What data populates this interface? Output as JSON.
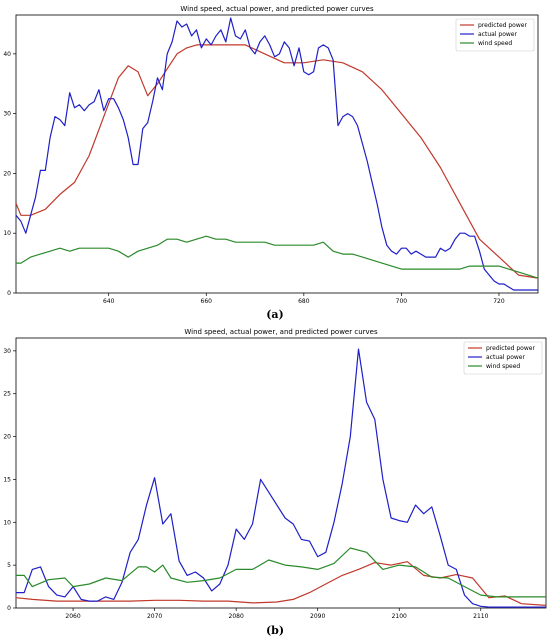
{
  "chart_data": [
    {
      "type": "line",
      "panel_label": "(a)",
      "title": "Wind speed, actual power, and predicted power curves",
      "xlabel": "",
      "ylabel": "",
      "xlim": [
        621,
        728
      ],
      "ylim": [
        0,
        46.5
      ],
      "x_ticks": [
        640,
        660,
        680,
        700,
        720
      ],
      "y_ticks": [
        0,
        10,
        20,
        30,
        40
      ],
      "grid": false,
      "legend_position": "top-right",
      "colors": {
        "predicted power": "#c0392b",
        "actual power": "#1f1fc8",
        "wind speed": "#2a8a2a"
      },
      "series": [
        {
          "name": "predicted power",
          "x": [
            621,
            622,
            624,
            627,
            630,
            633,
            636,
            639,
            642,
            644,
            646,
            648,
            650,
            652,
            654,
            656,
            658,
            660,
            664,
            668,
            672,
            676,
            680,
            684,
            688,
            692,
            696,
            700,
            704,
            708,
            712,
            716,
            720,
            724,
            728
          ],
          "y": [
            15,
            13,
            13,
            14,
            16.5,
            18.5,
            23,
            29.5,
            36,
            38,
            37,
            33,
            35,
            37.5,
            40,
            41,
            41.5,
            41.5,
            41.5,
            41.5,
            40,
            38.5,
            38.5,
            39,
            38.5,
            37,
            34,
            30,
            26,
            21,
            15,
            9,
            6,
            3,
            2.5
          ]
        },
        {
          "name": "actual power",
          "x": [
            621,
            622,
            623,
            624,
            625,
            626,
            627,
            628,
            629,
            630,
            631,
            632,
            633,
            634,
            635,
            636,
            637,
            638,
            639,
            640,
            641,
            642,
            643,
            644,
            645,
            646,
            647,
            648,
            649,
            650,
            651,
            652,
            653,
            654,
            655,
            656,
            657,
            658,
            659,
            660,
            661,
            662,
            663,
            664,
            665,
            666,
            667,
            668,
            669,
            670,
            671,
            672,
            673,
            674,
            675,
            676,
            677,
            678,
            679,
            680,
            681,
            682,
            683,
            684,
            685,
            686,
            687,
            688,
            689,
            690,
            691,
            692,
            693,
            694,
            695,
            696,
            697,
            698,
            699,
            700,
            701,
            702,
            703,
            704,
            705,
            706,
            707,
            708,
            709,
            710,
            711,
            712,
            713,
            714,
            715,
            716,
            717,
            718,
            719,
            720,
            721,
            722,
            723,
            724,
            725,
            726,
            727,
            728
          ],
          "y": [
            13,
            12,
            10,
            13,
            16,
            20.5,
            20.5,
            26,
            29.5,
            29,
            28,
            33.5,
            31,
            31.5,
            30.5,
            31.5,
            32,
            34,
            30.5,
            32.5,
            32.5,
            31,
            29,
            26,
            21.5,
            21.5,
            27.5,
            28.5,
            32,
            36,
            34,
            40,
            42,
            45.5,
            44.5,
            45,
            43,
            44,
            41,
            42.5,
            41.5,
            43,
            44,
            42,
            46,
            43,
            42.5,
            44,
            41,
            40,
            42,
            43,
            41.5,
            39.5,
            40,
            42,
            41,
            38,
            41,
            37,
            36.5,
            37,
            41,
            41.5,
            41,
            39,
            28,
            29.5,
            30,
            29.5,
            28,
            25,
            22,
            18.5,
            15,
            11,
            8,
            7,
            6.5,
            7.5,
            7.5,
            6.5,
            7,
            6.5,
            6,
            6,
            6,
            7.5,
            7,
            7.5,
            9,
            10,
            10,
            9.5,
            9.5,
            7,
            4,
            3,
            2,
            1.5,
            1.5,
            1,
            0.5,
            0.5,
            0.5,
            0.5,
            0.5,
            0.5
          ]
        },
        {
          "name": "wind speed",
          "x": [
            621,
            622,
            623,
            624,
            626,
            628,
            630,
            632,
            634,
            636,
            638,
            640,
            642,
            644,
            646,
            648,
            650,
            652,
            654,
            656,
            658,
            660,
            662,
            664,
            666,
            668,
            670,
            672,
            674,
            676,
            678,
            680,
            682,
            684,
            686,
            688,
            690,
            692,
            694,
            696,
            698,
            700,
            702,
            704,
            706,
            708,
            710,
            712,
            714,
            716,
            718,
            720,
            722,
            724,
            726,
            728
          ],
          "y": [
            5,
            5,
            5.5,
            6,
            6.5,
            7,
            7.5,
            7,
            7.5,
            7.5,
            7.5,
            7.5,
            7,
            6,
            7,
            7.5,
            8,
            9,
            9,
            8.5,
            9,
            9.5,
            9,
            9,
            8.5,
            8.5,
            8.5,
            8.5,
            8,
            8,
            8,
            8,
            8,
            8.5,
            7,
            6.5,
            6.5,
            6,
            5.5,
            5,
            4.5,
            4,
            4,
            4,
            4,
            4,
            4,
            4,
            4.5,
            4.5,
            4.5,
            4.5,
            4,
            3.5,
            3,
            2.5
          ]
        }
      ]
    },
    {
      "type": "line",
      "panel_label": "(b)",
      "title": "Wind speed, actual power, and predicted power curves",
      "xlabel": "",
      "ylabel": "",
      "xlim": [
        2053,
        2118
      ],
      "ylim": [
        0,
        31.5
      ],
      "x_ticks": [
        2060,
        2070,
        2080,
        2090,
        2100,
        2110
      ],
      "y_ticks": [
        0,
        5,
        10,
        15,
        20,
        25,
        30
      ],
      "grid": false,
      "legend_position": "top-right",
      "colors": {
        "predicted power": "#c0392b",
        "actual power": "#1f1fc8",
        "wind speed": "#2a8a2a"
      },
      "series": [
        {
          "name": "predicted power",
          "x": [
            2053,
            2055,
            2058,
            2061,
            2064,
            2067,
            2070,
            2073,
            2076,
            2079,
            2082,
            2085,
            2087,
            2089,
            2091,
            2093,
            2095,
            2097,
            2099,
            2101,
            2103,
            2105,
            2107,
            2109,
            2111,
            2113,
            2115,
            2118
          ],
          "y": [
            1.2,
            1.0,
            0.8,
            0.8,
            0.8,
            0.8,
            0.9,
            0.9,
            0.8,
            0.8,
            0.6,
            0.7,
            1.0,
            1.8,
            2.8,
            3.8,
            4.5,
            5.3,
            5.0,
            5.4,
            3.8,
            3.5,
            3.9,
            3.5,
            1.2,
            1.4,
            0.5,
            0.3
          ]
        },
        {
          "name": "actual power",
          "x": [
            2053,
            2054,
            2055,
            2056,
            2057,
            2058,
            2059,
            2060,
            2061,
            2062,
            2063,
            2064,
            2065,
            2066,
            2067,
            2068,
            2069,
            2070,
            2071,
            2072,
            2073,
            2074,
            2075,
            2076,
            2077,
            2078,
            2079,
            2080,
            2081,
            2082,
            2083,
            2084,
            2085,
            2086,
            2087,
            2088,
            2089,
            2090,
            2091,
            2092,
            2093,
            2094,
            2095,
            2096,
            2097,
            2098,
            2099,
            2100,
            2101,
            2102,
            2103,
            2104,
            2105,
            2106,
            2107,
            2108,
            2109,
            2110,
            2111,
            2112,
            2113,
            2114,
            2115,
            2116,
            2117,
            2118
          ],
          "y": [
            1.8,
            1.8,
            4.5,
            4.8,
            2.5,
            1.5,
            1.3,
            2.5,
            1.0,
            0.8,
            0.8,
            1.3,
            1.0,
            3.0,
            6.5,
            8.0,
            12.0,
            15.2,
            9.8,
            11.0,
            5.5,
            3.8,
            4.2,
            3.5,
            2.0,
            2.8,
            5.0,
            9.2,
            8.0,
            9.8,
            15.0,
            13.5,
            12.0,
            10.5,
            9.8,
            8.0,
            7.8,
            6.0,
            6.5,
            10.0,
            14.5,
            20.0,
            30.2,
            24.0,
            22.0,
            15.0,
            10.5,
            10.2,
            10.0,
            12.0,
            11.0,
            11.8,
            8.5,
            5.0,
            4.5,
            1.5,
            0.5,
            0.2,
            0.1,
            0.1,
            0.1,
            0.1,
            0.1,
            0.1,
            0.1,
            0.1
          ]
        },
        {
          "name": "wind speed",
          "x": [
            2053,
            2054,
            2055,
            2057,
            2059,
            2060,
            2062,
            2064,
            2066,
            2068,
            2069,
            2070,
            2071,
            2072,
            2074,
            2076,
            2078,
            2080,
            2082,
            2084,
            2086,
            2088,
            2090,
            2092,
            2094,
            2096,
            2098,
            2100,
            2102,
            2104,
            2106,
            2108,
            2110,
            2112,
            2114,
            2116,
            2118
          ],
          "y": [
            3.8,
            3.8,
            2.5,
            3.3,
            3.5,
            2.5,
            2.8,
            3.5,
            3.2,
            4.8,
            4.8,
            4.2,
            5.0,
            3.5,
            3.0,
            3.2,
            3.5,
            4.5,
            4.5,
            5.6,
            5.0,
            4.8,
            4.5,
            5.2,
            7.0,
            6.5,
            4.5,
            5.0,
            4.8,
            3.6,
            3.5,
            2.5,
            1.5,
            1.3,
            1.3,
            1.3,
            1.3
          ]
        }
      ]
    }
  ]
}
